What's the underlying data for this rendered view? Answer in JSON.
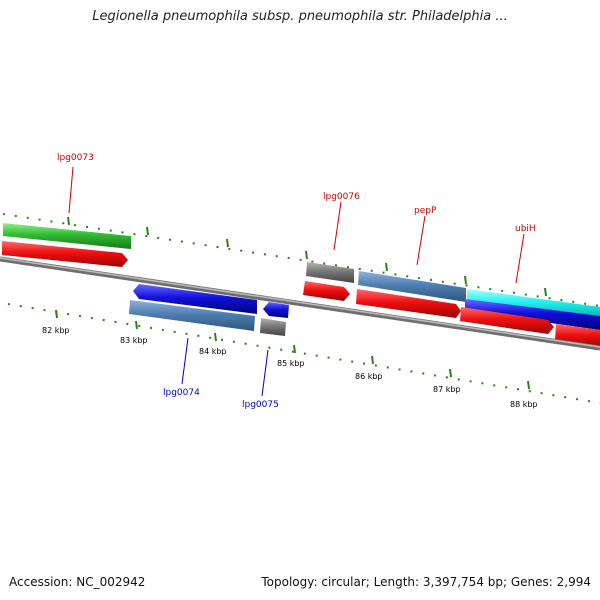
{
  "title": "Legionella pneumophila subsp. pneumophila str. Philadelphia ...",
  "footer": {
    "accession": "Accession: NC_002942",
    "stats": "Topology: circular; Length: 3,397,754 bp; Genes: 2,994"
  },
  "ticks": [
    "82 kbp",
    "83 kbp",
    "84 kbp",
    "85 kbp",
    "86 kbp",
    "87 kbp",
    "88 kbp"
  ],
  "gene_labels": {
    "lpg0073": "lpg0073",
    "lpg0074": "lpg0074",
    "lpg0075": "lpg0075",
    "lpg0076": "lpg0076",
    "pepP": "pepP",
    "ubiH": "ubiH"
  },
  "colors": {
    "forward_label": "#cc0000",
    "reverse_label": "#0000cc",
    "backbone": "#808080",
    "tick": "#2e7d1e",
    "cds_red": "#ee1111",
    "gene_green": "#33bb33",
    "gene_blue": "#1111dd",
    "gene_steel": "#4f7fb0",
    "gene_gray": "#777777",
    "gene_cyan": "#22eeee"
  }
}
